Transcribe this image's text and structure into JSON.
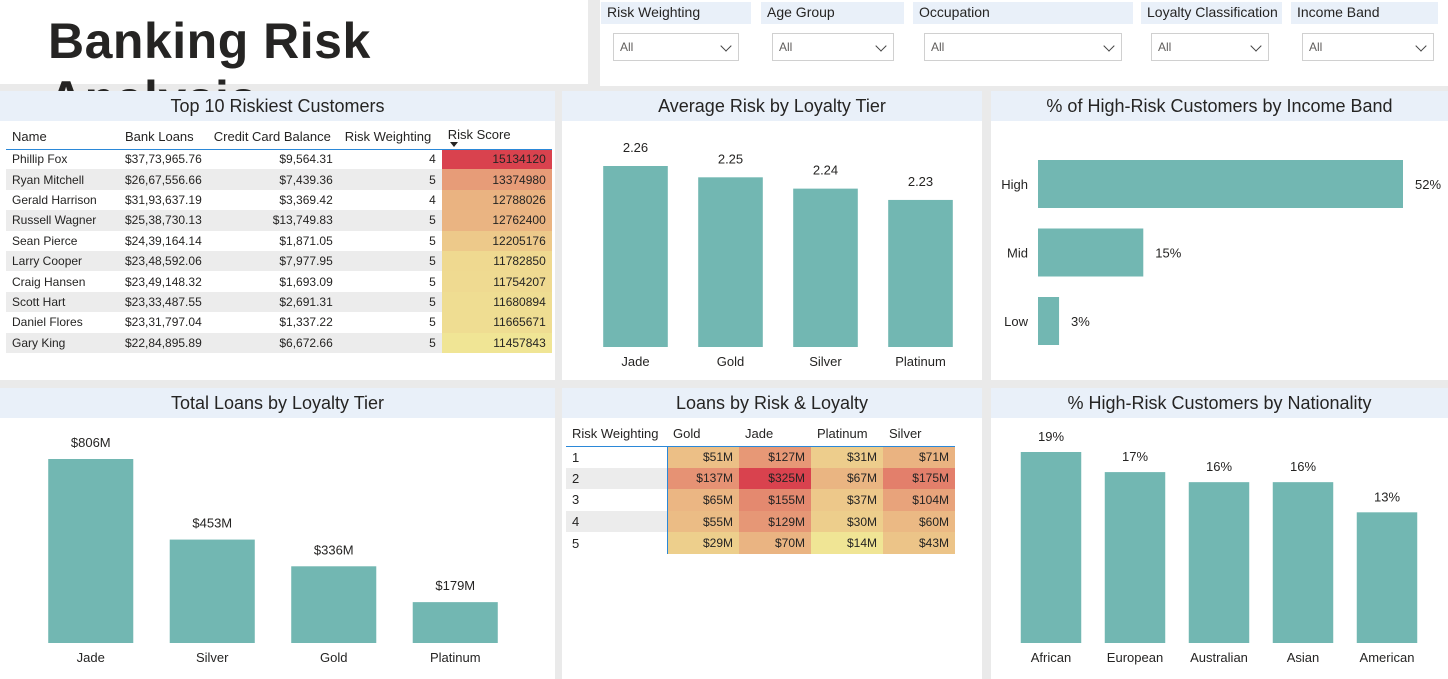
{
  "app_title": "Banking Risk Analysis",
  "filters": [
    {
      "label": "Risk Weighting",
      "value": "All"
    },
    {
      "label": "Age Group",
      "value": "All"
    },
    {
      "label": "Occupation",
      "value": "All"
    },
    {
      "label": "Loyalty Classification",
      "value": "All"
    },
    {
      "label": "Income Band",
      "value": "All"
    }
  ],
  "colors": {
    "bar": "#72b7b2",
    "heat_high": "#d9424e",
    "heat_mid": "#e8a07a",
    "heat_low": "#f0e595",
    "header_bg": "#e9f0f9",
    "accent": "#2b88d8"
  },
  "top10": {
    "title": "Top 10 Riskiest Customers",
    "columns": [
      "Name",
      "Bank Loans",
      "Credit Card Balance",
      "Risk Weighting",
      "Risk Score"
    ],
    "rows": [
      [
        "Phillip Fox",
        "$37,73,965.76",
        "$9,564.31",
        "4",
        "15134120"
      ],
      [
        "Ryan Mitchell",
        "$26,67,556.66",
        "$7,439.36",
        "5",
        "13374980"
      ],
      [
        "Gerald Harrison",
        "$31,93,637.19",
        "$3,369.42",
        "4",
        "12788026"
      ],
      [
        "Russell Wagner",
        "$25,38,730.13",
        "$13,749.83",
        "5",
        "12762400"
      ],
      [
        "Sean Pierce",
        "$24,39,164.14",
        "$1,871.05",
        "5",
        "12205176"
      ],
      [
        "Larry Cooper",
        "$23,48,592.06",
        "$7,977.95",
        "5",
        "11782850"
      ],
      [
        "Craig Hansen",
        "$23,49,148.32",
        "$1,693.09",
        "5",
        "11754207"
      ],
      [
        "Scott Hart",
        "$23,33,487.55",
        "$2,691.31",
        "5",
        "11680894"
      ],
      [
        "Daniel Flores",
        "$23,31,797.04",
        "$1,337.22",
        "5",
        "11665671"
      ],
      [
        "Gary King",
        "$22,84,895.89",
        "$6,672.66",
        "5",
        "11457843"
      ]
    ]
  },
  "matrix": {
    "title": "Loans by Risk & Loyalty",
    "corner": "Risk Weighting",
    "columns": [
      "Gold",
      "Jade",
      "Platinum",
      "Silver"
    ],
    "rows": [
      {
        "label": "1",
        "cells": [
          "$51M",
          "$127M",
          "$31M",
          "$71M"
        ]
      },
      {
        "label": "2",
        "cells": [
          "$137M",
          "$325M",
          "$67M",
          "$175M"
        ]
      },
      {
        "label": "3",
        "cells": [
          "$65M",
          "$155M",
          "$37M",
          "$104M"
        ]
      },
      {
        "label": "4",
        "cells": [
          "$55M",
          "$129M",
          "$30M",
          "$60M"
        ]
      },
      {
        "label": "5",
        "cells": [
          "$29M",
          "$70M",
          "$14M",
          "$43M"
        ]
      }
    ]
  },
  "chart_data": [
    {
      "id": "avg-risk",
      "type": "bar",
      "title": "Average Risk by Loyalty Tier",
      "categories": [
        "Jade",
        "Gold",
        "Silver",
        "Platinum"
      ],
      "values": [
        2.26,
        2.25,
        2.24,
        2.23
      ],
      "labels": [
        "2.26",
        "2.25",
        "2.24",
        "2.23"
      ],
      "grid": false
    },
    {
      "id": "income-band",
      "type": "bar",
      "orientation": "horizontal",
      "title": "% of High-Risk Customers by Income Band",
      "categories": [
        "High",
        "Mid",
        "Low"
      ],
      "values": [
        52,
        15,
        3
      ],
      "labels": [
        "52%",
        "15%",
        "3%"
      ],
      "grid": false
    },
    {
      "id": "total-loans",
      "type": "bar",
      "title": "Total Loans by Loyalty Tier",
      "categories": [
        "Jade",
        "Silver",
        "Gold",
        "Platinum"
      ],
      "values": [
        806,
        453,
        336,
        179
      ],
      "labels": [
        "$806M",
        "$453M",
        "$336M",
        "$179M"
      ],
      "grid": false
    },
    {
      "id": "nationality",
      "type": "bar",
      "title": "% High-Risk Customers by Nationality",
      "categories": [
        "African",
        "European",
        "Australian",
        "Asian",
        "American"
      ],
      "values": [
        19,
        17,
        16,
        16,
        13
      ],
      "labels": [
        "19%",
        "17%",
        "16%",
        "16%",
        "13%"
      ],
      "grid": false
    }
  ]
}
